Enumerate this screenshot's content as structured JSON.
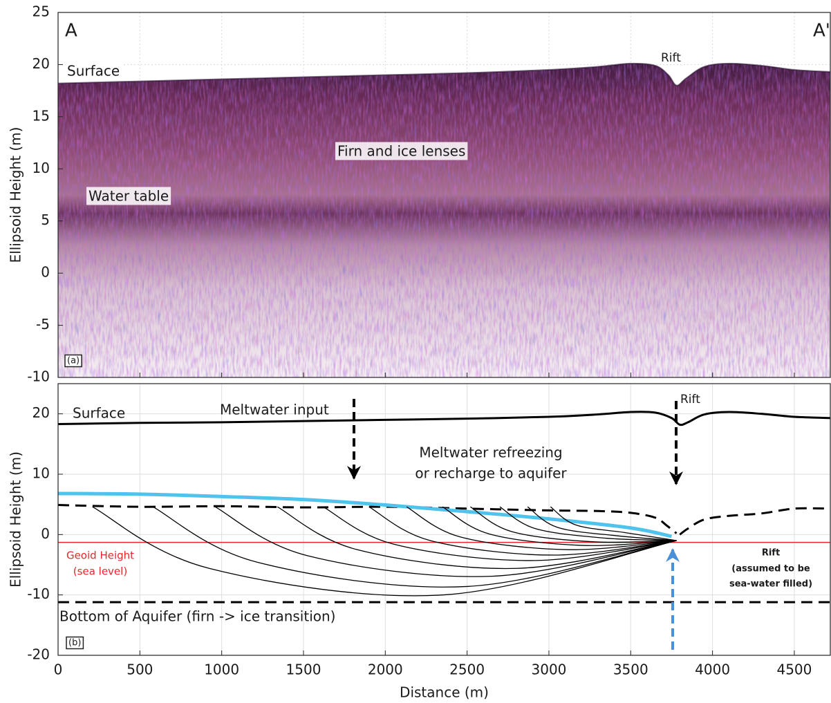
{
  "chart_data": [
    {
      "type": "radargram",
      "ylabel": "Ellipsoid Height (m)",
      "annotations": [
        "A",
        "A'",
        "Rift",
        "Surface",
        "Firn and ice lenses",
        "Water table",
        "(a)"
      ],
      "xlim": [
        0,
        4720
      ],
      "ylim": [
        -10,
        25
      ],
      "xticks": [
        0,
        500,
        1000,
        1500,
        2000,
        2500,
        3000,
        3500,
        4000,
        4500
      ],
      "yticks": [
        -10,
        -5,
        0,
        5,
        10,
        15,
        20,
        25
      ],
      "grid": true,
      "series": [
        {
          "x": [
            0,
            500,
            1000,
            1500,
            2000,
            2500,
            3000,
            3300,
            3500,
            3650,
            3730,
            3780,
            3840,
            3950,
            4100,
            4300,
            4500,
            4720
          ],
          "values": [
            18.2,
            18.4,
            18.6,
            18.8,
            19.0,
            19.2,
            19.5,
            19.8,
            20.1,
            19.9,
            19.0,
            18.0,
            18.7,
            19.8,
            20.1,
            19.9,
            19.5,
            19.3
          ]
        }
      ]
    },
    {
      "type": "line",
      "ylabel": "Ellipsoid Height (m)",
      "xlabel": "Distance (m)",
      "annotations": [
        "Surface",
        "Meltwater input",
        "Meltwater refreezing",
        "or recharge to aquifer",
        "Rift",
        "Geoid Height",
        "(sea level)",
        "Rift",
        "(assumed to be",
        "sea-water filled)",
        "Bottom of Aquifer (firn -> ice transition)",
        "(b)"
      ],
      "xlim": [
        0,
        4720
      ],
      "ylim": [
        -20,
        25
      ],
      "xticks": [
        0,
        500,
        1000,
        1500,
        2000,
        2500,
        3000,
        3500,
        4000,
        4500
      ],
      "yticks": [
        -20,
        -10,
        0,
        10,
        20
      ],
      "grid": true,
      "series": [
        {
          "color": "#000000",
          "linestyle": "solid",
          "linewidth": 3,
          "x": [
            0,
            500,
            1000,
            1500,
            2000,
            2500,
            3000,
            3300,
            3500,
            3650,
            3750,
            3800,
            3850,
            3950,
            4100,
            4300,
            4500,
            4720
          ],
          "values": [
            18.3,
            18.5,
            18.6,
            18.8,
            19.0,
            19.2,
            19.5,
            19.9,
            20.3,
            20.2,
            19.3,
            18.2,
            18.6,
            19.9,
            20.3,
            20.0,
            19.5,
            19.3
          ]
        },
        {
          "color": "#000000",
          "linestyle": "dashed",
          "linewidth": 3,
          "x": [
            0,
            500,
            1000,
            1500,
            2000,
            2500,
            3000,
            3300,
            3500,
            3650,
            3720,
            3780,
            3790,
            3800,
            3850,
            3950,
            4100,
            4300,
            4500,
            4720
          ],
          "values": [
            4.9,
            4.6,
            4.7,
            4.5,
            4.6,
            4.3,
            4.0,
            3.9,
            3.6,
            2.8,
            1.5,
            0.2,
            null,
            0.0,
            1.0,
            2.5,
            3.1,
            3.5,
            4.3,
            4.3
          ]
        },
        {
          "color": "#4fc3ec",
          "linestyle": "solid",
          "linewidth": 5,
          "x": [
            0,
            500,
            1000,
            1500,
            2000,
            2500,
            3000,
            3500,
            3750
          ],
          "values": [
            6.8,
            6.7,
            6.3,
            5.8,
            4.9,
            3.8,
            2.6,
            1.1,
            -0.3
          ]
        },
        {
          "color": "#e8262b",
          "linestyle": "solid",
          "linewidth": 1.5,
          "x": [
            0,
            4720
          ],
          "values": [
            -1.3,
            -1.3
          ]
        },
        {
          "color": "#000000",
          "linestyle": "dashed",
          "linewidth": 3,
          "x": [
            0,
            4720
          ],
          "values": [
            -11.2,
            -11.2
          ]
        },
        {
          "color": "#000000",
          "linestyle": "solid",
          "linewidth": 1.3,
          "x": [
            210,
            924,
            2352,
            3780
          ],
          "values": [
            4.6,
            -5.6,
            -10,
            -1
          ]
        },
        {
          "color": "#000000",
          "linestyle": "solid",
          "linewidth": 1.3,
          "x": [
            580,
            1220,
            2500,
            3780
          ],
          "values": [
            4.6,
            -4.6,
            -8.6,
            -1
          ]
        },
        {
          "color": "#000000",
          "linestyle": "solid",
          "linewidth": 1.3,
          "x": [
            960,
            1524,
            2652,
            3780
          ],
          "values": [
            4.6,
            -3.5,
            -6.9,
            -1
          ]
        },
        {
          "color": "#000000",
          "linestyle": "solid",
          "linewidth": 1.3,
          "x": [
            1340,
            1828,
            2804,
            3780
          ],
          "values": [
            4.6,
            -2.5,
            -5.6,
            -1
          ]
        },
        {
          "color": "#000000",
          "linestyle": "solid",
          "linewidth": 1.3,
          "x": [
            1620,
            2052,
            2916,
            3780
          ],
          "values": [
            4.6,
            -1.6,
            -4.3,
            -1
          ]
        },
        {
          "color": "#000000",
          "linestyle": "solid",
          "linewidth": 1.3,
          "x": [
            1900,
            2276,
            3028,
            3780
          ],
          "values": [
            4.6,
            -1.0,
            -3.4,
            -1
          ]
        },
        {
          "color": "#000000",
          "linestyle": "solid",
          "linewidth": 1.3,
          "x": [
            2130,
            2460,
            3120,
            3780
          ],
          "values": [
            4.6,
            -0.4,
            -2.5,
            -1
          ]
        },
        {
          "color": "#000000",
          "linestyle": "solid",
          "linewidth": 1.3,
          "x": [
            2350,
            2636,
            3208,
            3780
          ],
          "values": [
            4.6,
            0.1,
            -1.8,
            -1
          ]
        },
        {
          "color": "#000000",
          "linestyle": "solid",
          "linewidth": 1.3,
          "x": [
            2520,
            2772,
            3276,
            3780
          ],
          "values": [
            4.6,
            0.5,
            -1.2,
            -1
          ]
        },
        {
          "color": "#000000",
          "linestyle": "solid",
          "linewidth": 1.3,
          "x": [
            2700,
            2916,
            3348,
            3780
          ],
          "values": [
            4.6,
            1.0,
            -0.6,
            -1
          ]
        },
        {
          "color": "#000000",
          "linestyle": "solid",
          "linewidth": 1.3,
          "x": [
            2870,
            3052,
            3416,
            3780
          ],
          "values": [
            4.6,
            1.2,
            -0.2,
            -1
          ]
        },
        {
          "color": "#000000",
          "linestyle": "solid",
          "linewidth": 1.3,
          "x": [
            3010,
            3164,
            3472,
            3780
          ],
          "values": [
            4.6,
            1.6,
            0.3,
            -1
          ]
        }
      ]
    }
  ]
}
